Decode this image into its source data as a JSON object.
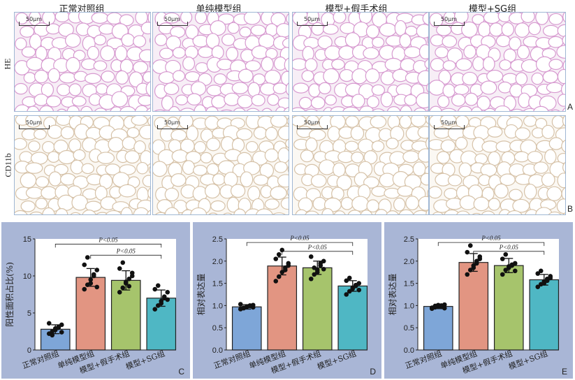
{
  "figure": {
    "columns": [
      "正常对照组",
      "单纯模型组",
      "模型+假手术组",
      "模型+SG组"
    ],
    "rows": [
      "HE",
      "CD11b"
    ],
    "scale_bar": "50μm",
    "panel_letters": [
      "A",
      "B",
      "C",
      "D",
      "E"
    ],
    "colors": {
      "he_bg": "#f7eef6",
      "he_line": "#d79ad0",
      "ihc_bg": "#fbf8f3",
      "ihc_line": "#d6c2a8",
      "panel_bg": "#a9b6d6",
      "plot_bg": "#ffffff"
    }
  },
  "chart_data": [
    {
      "type": "bar",
      "letter": "C",
      "ylabel": "阳性面积占比(%)",
      "ylim": [
        0,
        15
      ],
      "yticks": [
        0,
        5,
        10,
        15
      ],
      "categories": [
        "正常对照组",
        "单纯模型组",
        "模型+假手术组",
        "模型+SG组"
      ],
      "values": [
        2.8,
        9.8,
        9.4,
        7.0
      ],
      "errors": [
        0.6,
        1.2,
        1.3,
        1.1
      ],
      "bar_colors": [
        "#7ea6d8",
        "#e29582",
        "#a6c46c",
        "#4fb7c4"
      ],
      "points": [
        [
          2.2,
          2.5,
          2.7,
          3.0,
          3.4,
          3.6,
          2.0,
          2.9,
          3.1,
          2.4
        ],
        [
          8.2,
          8.8,
          9.5,
          10.2,
          10.8,
          11.5,
          12.5,
          9.0,
          10.0,
          8.5
        ],
        [
          7.8,
          8.4,
          9.0,
          9.6,
          10.4,
          11.0,
          11.8,
          9.2,
          8.6,
          10.0
        ],
        [
          5.5,
          6.0,
          6.6,
          7.2,
          7.8,
          8.2,
          8.7,
          6.3,
          7.0,
          6.8
        ]
      ],
      "annotations": [
        {
          "text": "P<0.05",
          "from": 0,
          "to": 3,
          "y": 14.3
        },
        {
          "text": "P<0.05",
          "from": 1,
          "to": 3,
          "y": 12.8
        }
      ]
    },
    {
      "type": "bar",
      "letter": "D",
      "ylabel": "相对表达量",
      "ylim": [
        0,
        2.5
      ],
      "yticks": [
        0.0,
        0.5,
        1.0,
        1.5,
        2.0,
        2.5
      ],
      "categories": [
        "正常对照组",
        "单纯模型组",
        "模型+假手术组",
        "模型+SG组"
      ],
      "values": [
        0.97,
        1.89,
        1.85,
        1.44
      ],
      "errors": [
        0.05,
        0.2,
        0.15,
        0.12
      ],
      "bar_colors": [
        "#7ea6d8",
        "#e29582",
        "#a6c46c",
        "#4fb7c4"
      ],
      "points": [
        [
          0.92,
          0.95,
          0.97,
          0.99,
          1.01,
          1.03,
          0.94,
          0.98,
          1.0,
          0.96
        ],
        [
          1.55,
          1.65,
          1.75,
          1.85,
          1.95,
          2.05,
          2.15,
          2.25,
          1.8,
          1.9
        ],
        [
          1.6,
          1.7,
          1.8,
          1.9,
          2.0,
          2.1,
          1.85,
          1.75,
          1.95,
          1.82
        ],
        [
          1.25,
          1.32,
          1.38,
          1.44,
          1.5,
          1.56,
          1.62,
          1.4,
          1.46,
          1.35
        ]
      ],
      "annotations": [
        {
          "text": "P<0.05",
          "from": 0,
          "to": 3,
          "y": 2.42
        },
        {
          "text": "P<0.05",
          "from": 1,
          "to": 3,
          "y": 2.22
        }
      ]
    },
    {
      "type": "bar",
      "letter": "E",
      "ylabel": "相对表达量",
      "ylim": [
        0,
        2.5
      ],
      "yticks": [
        0.0,
        0.5,
        1.0,
        1.5,
        2.0,
        2.5
      ],
      "categories": [
        "正常对照组",
        "单纯模型组",
        "模型+假手术组",
        "模型+SG组"
      ],
      "values": [
        0.98,
        1.97,
        1.9,
        1.58
      ],
      "errors": [
        0.05,
        0.2,
        0.16,
        0.12
      ],
      "bar_colors": [
        "#7ea6d8",
        "#e29582",
        "#a6c46c",
        "#4fb7c4"
      ],
      "points": [
        [
          0.93,
          0.96,
          0.98,
          1.0,
          1.02,
          0.95,
          0.99,
          1.01,
          0.97,
          0.94
        ],
        [
          1.7,
          1.8,
          1.9,
          2.0,
          2.1,
          2.2,
          2.35,
          1.85,
          1.95,
          2.05
        ],
        [
          1.7,
          1.8,
          1.85,
          1.9,
          1.95,
          2.05,
          2.15,
          1.88,
          1.92,
          1.78
        ],
        [
          1.42,
          1.48,
          1.54,
          1.6,
          1.66,
          1.72,
          1.78,
          1.5,
          1.56,
          1.62
        ]
      ],
      "annotations": [
        {
          "text": "P<0.05",
          "from": 0,
          "to": 3,
          "y": 2.42
        },
        {
          "text": "P<0.05",
          "from": 1,
          "to": 3,
          "y": 2.22
        }
      ]
    }
  ]
}
